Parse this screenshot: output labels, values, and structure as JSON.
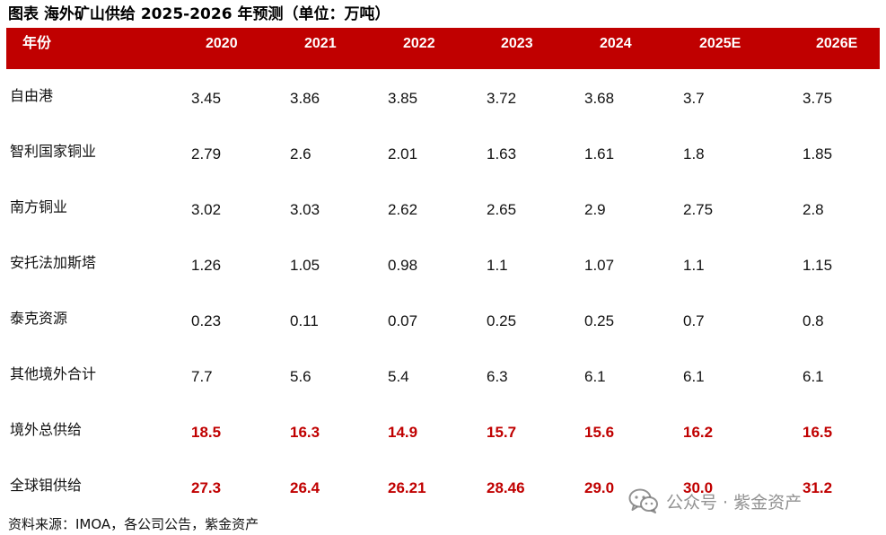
{
  "title": "图表  海外矿山供给 2025-2026 年预测（单位：万吨）",
  "header": {
    "label": "年份",
    "years": [
      "2020",
      "2021",
      "2022",
      "2023",
      "2024",
      "2025E",
      "2026E"
    ]
  },
  "rows": [
    {
      "label": "自由港",
      "values": [
        "3.45",
        "3.86",
        "3.85",
        "3.72",
        "3.68",
        "3.7",
        "3.75"
      ],
      "highlight": false
    },
    {
      "label": "智利国家铜业",
      "values": [
        "2.79",
        "2.6",
        "2.01",
        "1.63",
        "1.61",
        "1.8",
        "1.85"
      ],
      "highlight": false
    },
    {
      "label": "南方铜业",
      "values": [
        "3.02",
        "3.03",
        "2.62",
        "2.65",
        "2.9",
        "2.75",
        "2.8"
      ],
      "highlight": false
    },
    {
      "label": "安托法加斯塔",
      "values": [
        "1.26",
        "1.05",
        "0.98",
        "1.1",
        "1.07",
        "1.1",
        "1.15"
      ],
      "highlight": false
    },
    {
      "label": "泰克资源",
      "values": [
        "0.23",
        "0.11",
        "0.07",
        "0.25",
        "0.25",
        "0.7",
        "0.8"
      ],
      "highlight": false
    },
    {
      "label": "其他境外合计",
      "values": [
        "7.7",
        "5.6",
        "5.4",
        "6.3",
        "6.1",
        "6.1",
        "6.1"
      ],
      "highlight": false
    },
    {
      "label": "境外总供给",
      "values": [
        "18.5",
        "16.3",
        "14.9",
        "15.7",
        "15.6",
        "16.2",
        "16.5"
      ],
      "highlight": true
    },
    {
      "label": "全球钼供给",
      "values": [
        "27.3",
        "26.4",
        "26.21",
        "28.46",
        "29.0",
        "30.0",
        "31.2"
      ],
      "highlight": true
    }
  ],
  "source": "资料来源：IMOA，各公司公告，紫金资产",
  "watermark": {
    "text": "公众号 · 紫金资产",
    "icon": "wechat-icon"
  },
  "colors": {
    "header_bg": "#c00000",
    "highlight_text": "#c00000"
  }
}
